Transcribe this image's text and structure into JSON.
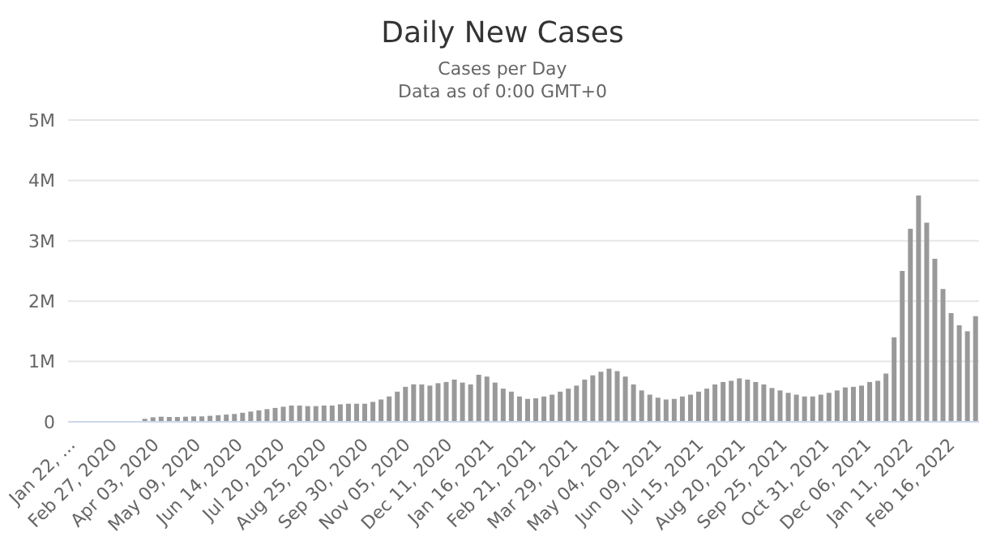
{
  "chart_data": {
    "type": "bar",
    "title": "Daily New Cases",
    "subtitle": "Cases per Day\nData as of 0:00 GMT+0",
    "color": "#999999",
    "x": [
      "2020-01-22",
      "2020-01-29",
      "2020-02-05",
      "2020-02-12",
      "2020-02-19",
      "2020-02-26",
      "2020-03-04",
      "2020-03-11",
      "2020-03-18",
      "2020-03-25",
      "2020-04-01",
      "2020-04-08",
      "2020-04-15",
      "2020-04-22",
      "2020-04-29",
      "2020-05-06",
      "2020-05-13",
      "2020-05-20",
      "2020-05-27",
      "2020-06-03",
      "2020-06-10",
      "2020-06-17",
      "2020-06-24",
      "2020-07-01",
      "2020-07-08",
      "2020-07-15",
      "2020-07-22",
      "2020-07-29",
      "2020-08-05",
      "2020-08-12",
      "2020-08-19",
      "2020-08-26",
      "2020-09-02",
      "2020-09-09",
      "2020-09-16",
      "2020-09-23",
      "2020-09-30",
      "2020-10-07",
      "2020-10-14",
      "2020-10-21",
      "2020-10-28",
      "2020-11-04",
      "2020-11-11",
      "2020-11-18",
      "2020-11-25",
      "2020-12-02",
      "2020-12-09",
      "2020-12-16",
      "2020-12-23",
      "2020-12-30",
      "2021-01-06",
      "2021-01-13",
      "2021-01-20",
      "2021-01-27",
      "2021-02-03",
      "2021-02-10",
      "2021-02-17",
      "2021-02-24",
      "2021-03-03",
      "2021-03-10",
      "2021-03-17",
      "2021-03-24",
      "2021-03-31",
      "2021-04-07",
      "2021-04-14",
      "2021-04-21",
      "2021-04-28",
      "2021-05-05",
      "2021-05-12",
      "2021-05-19",
      "2021-05-26",
      "2021-06-02",
      "2021-06-09",
      "2021-06-16",
      "2021-06-23",
      "2021-06-30",
      "2021-07-07",
      "2021-07-14",
      "2021-07-21",
      "2021-07-28",
      "2021-08-04",
      "2021-08-11",
      "2021-08-18",
      "2021-08-25",
      "2021-09-01",
      "2021-09-08",
      "2021-09-15",
      "2021-09-22",
      "2021-09-29",
      "2021-10-06",
      "2021-10-13",
      "2021-10-20",
      "2021-10-27",
      "2021-11-03",
      "2021-11-10",
      "2021-11-17",
      "2021-11-24",
      "2021-12-01",
      "2021-12-08",
      "2021-12-15",
      "2021-12-22",
      "2021-12-29",
      "2022-01-05",
      "2022-01-12",
      "2022-01-19",
      "2022-01-26",
      "2022-02-02",
      "2022-02-09",
      "2022-02-16",
      "2022-02-23",
      "2022-03-02",
      "2022-03-09"
    ],
    "values": [
      0,
      0,
      0,
      0,
      0,
      0,
      0,
      0,
      0,
      50000,
      75000,
      85000,
      80000,
      80000,
      85000,
      90000,
      90000,
      100000,
      110000,
      120000,
      130000,
      150000,
      170000,
      190000,
      210000,
      230000,
      250000,
      270000,
      270000,
      260000,
      260000,
      270000,
      270000,
      290000,
      300000,
      300000,
      300000,
      330000,
      370000,
      420000,
      500000,
      580000,
      620000,
      620000,
      600000,
      640000,
      660000,
      700000,
      650000,
      620000,
      780000,
      750000,
      650000,
      550000,
      500000,
      420000,
      380000,
      390000,
      420000,
      450000,
      500000,
      550000,
      600000,
      700000,
      770000,
      830000,
      880000,
      840000,
      750000,
      620000,
      520000,
      450000,
      400000,
      370000,
      380000,
      420000,
      450000,
      500000,
      550000,
      620000,
      660000,
      680000,
      720000,
      700000,
      660000,
      620000,
      560000,
      520000,
      480000,
      450000,
      420000,
      420000,
      450000,
      480000,
      520000,
      570000,
      580000,
      600000,
      660000,
      680000,
      800000,
      1400000,
      2500000,
      3200000,
      3750000,
      3300000,
      2700000,
      2200000,
      1800000,
      1600000,
      1500000,
      1750000
    ],
    "xlim": [
      "2020-01-19",
      "2022-03-12"
    ],
    "xticks": [
      {
        "value": "2020-01-22",
        "label": "Jan 22, ..."
      },
      {
        "value": "2020-02-27",
        "label": "Feb 27, 2020"
      },
      {
        "value": "2020-04-03",
        "label": "Apr 03, 2020"
      },
      {
        "value": "2020-05-09",
        "label": "May 09, 2020"
      },
      {
        "value": "2020-06-14",
        "label": "Jun 14, 2020"
      },
      {
        "value": "2020-07-20",
        "label": "Jul 20, 2020"
      },
      {
        "value": "2020-08-25",
        "label": "Aug 25, 2020"
      },
      {
        "value": "2020-09-30",
        "label": "Sep 30, 2020"
      },
      {
        "value": "2020-11-05",
        "label": "Nov 05, 2020"
      },
      {
        "value": "2020-12-11",
        "label": "Dec 11, 2020"
      },
      {
        "value": "2021-01-16",
        "label": "Jan 16, 2021"
      },
      {
        "value": "2021-02-21",
        "label": "Feb 21, 2021"
      },
      {
        "value": "2021-03-29",
        "label": "Mar 29, 2021"
      },
      {
        "value": "2021-05-04",
        "label": "May 04, 2021"
      },
      {
        "value": "2021-06-09",
        "label": "Jun 09, 2021"
      },
      {
        "value": "2021-07-15",
        "label": "Jul 15, 2021"
      },
      {
        "value": "2021-08-20",
        "label": "Aug 20, 2021"
      },
      {
        "value": "2021-09-25",
        "label": "Sep 25, 2021"
      },
      {
        "value": "2021-10-31",
        "label": "Oct 31, 2021"
      },
      {
        "value": "2021-12-06",
        "label": "Dec 06, 2021"
      },
      {
        "value": "2022-01-11",
        "label": "Jan 11, 2022"
      },
      {
        "value": "2022-02-16",
        "label": "Feb 16, 2022"
      }
    ],
    "ylim": [
      0,
      5000000
    ],
    "yticks": [
      {
        "value": 0,
        "label": "0"
      },
      {
        "value": 1000000,
        "label": "1M"
      },
      {
        "value": 2000000,
        "label": "2M"
      },
      {
        "value": 3000000,
        "label": "3M"
      },
      {
        "value": 4000000,
        "label": "4M"
      },
      {
        "value": 5000000,
        "label": "5M"
      }
    ],
    "grid": "y",
    "legend": false
  }
}
